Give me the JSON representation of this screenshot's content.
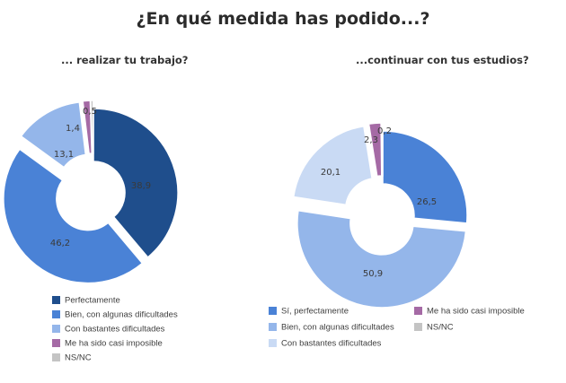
{
  "page": {
    "title": "¿En qué medida has podido...?"
  },
  "chart_data": [
    {
      "type": "pie",
      "variant": "donut",
      "title": "... realizar tu trabajo?",
      "categories": [
        "Perfectamente",
        "Bien, con algunas dificultades",
        "Con bastantes dificultades",
        "Me ha sido casi imposible",
        "NS/NC"
      ],
      "values": [
        38.9,
        46.2,
        13.1,
        1.4,
        0.5
      ],
      "value_labels": [
        "38,9",
        "46,2",
        "13,1",
        "1,4",
        "0,5"
      ],
      "colors": [
        "#1f4e8c",
        "#4a82d6",
        "#94b6ea",
        "#a56aa5",
        "#c4c4c4"
      ],
      "exploded": [
        false,
        true,
        true,
        true,
        true
      ],
      "legend_placement": "bottom-left, one column"
    },
    {
      "type": "pie",
      "variant": "donut",
      "title": "...continuar con tus estudios?",
      "categories": [
        "Sí, perfectamente",
        "Bien, con algunas dificultades",
        "Con bastantes dificultades",
        "Me ha sido casi imposible",
        "NS/NC"
      ],
      "values": [
        26.5,
        50.9,
        20.1,
        2.3,
        0.2
      ],
      "value_labels": [
        "26,5",
        "50,9",
        "20,1",
        "2,3",
        "0,2"
      ],
      "colors": [
        "#4a82d6",
        "#94b6ea",
        "#c9daf4",
        "#a56aa5",
        "#c4c4c4"
      ],
      "exploded": [
        false,
        true,
        true,
        true,
        true
      ],
      "legend_placement": "bottom, two columns"
    }
  ]
}
